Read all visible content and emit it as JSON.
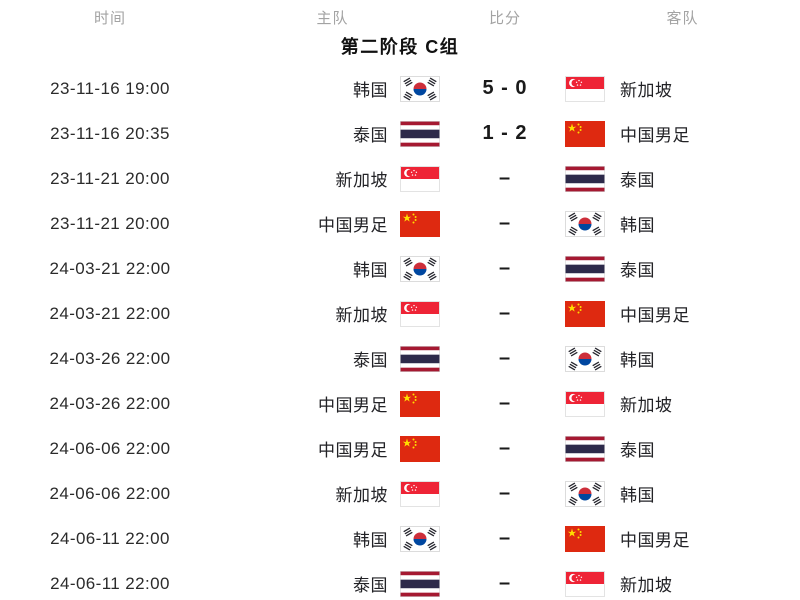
{
  "header": {
    "columns": [
      {
        "key": "time",
        "label": "时间"
      },
      {
        "key": "home",
        "label": "主队"
      },
      {
        "key": "score",
        "label": "比分"
      },
      {
        "key": "away",
        "label": "客队"
      }
    ]
  },
  "group_title": "第二阶段 C组",
  "teams": {
    "KR": {
      "name": "韩国",
      "flag": "south-korea"
    },
    "SG": {
      "name": "新加坡",
      "flag": "singapore"
    },
    "TH": {
      "name": "泰国",
      "flag": "thailand"
    },
    "CN": {
      "name": "中国男足",
      "flag": "china"
    }
  },
  "matches": [
    {
      "time": "23-11-16 19:00",
      "home": "KR",
      "score": "5 - 0",
      "away": "SG"
    },
    {
      "time": "23-11-16 20:35",
      "home": "TH",
      "score": "1 - 2",
      "away": "CN"
    },
    {
      "time": "23-11-21 20:00",
      "home": "SG",
      "score": "–",
      "away": "TH"
    },
    {
      "time": "23-11-21 20:00",
      "home": "CN",
      "score": "–",
      "away": "KR"
    },
    {
      "time": "24-03-21 22:00",
      "home": "KR",
      "score": "–",
      "away": "TH"
    },
    {
      "time": "24-03-21 22:00",
      "home": "SG",
      "score": "–",
      "away": "CN"
    },
    {
      "time": "24-03-26 22:00",
      "home": "TH",
      "score": "–",
      "away": "KR"
    },
    {
      "time": "24-03-26 22:00",
      "home": "CN",
      "score": "–",
      "away": "SG"
    },
    {
      "time": "24-06-06 22:00",
      "home": "CN",
      "score": "–",
      "away": "TH"
    },
    {
      "time": "24-06-06 22:00",
      "home": "SG",
      "score": "–",
      "away": "KR"
    },
    {
      "time": "24-06-11 22:00",
      "home": "KR",
      "score": "–",
      "away": "CN"
    },
    {
      "time": "24-06-11 22:00",
      "home": "TH",
      "score": "–",
      "away": "SG"
    }
  ],
  "colors": {
    "header_text": "#a3a3a3",
    "time_text": "#2b2b2b",
    "team_text": "#222226",
    "score_text": "#1a1a1a",
    "title_text": "#111111",
    "background": "#ffffff",
    "flag_china_red": "#de2910",
    "flag_china_yellow": "#ffde00",
    "flag_singapore_red": "#ee2436",
    "flag_thailand_red": "#a51931",
    "flag_thailand_navy": "#2d2a4a",
    "flag_korea_red": "#cd2e3a",
    "flag_korea_blue": "#0047a0"
  }
}
